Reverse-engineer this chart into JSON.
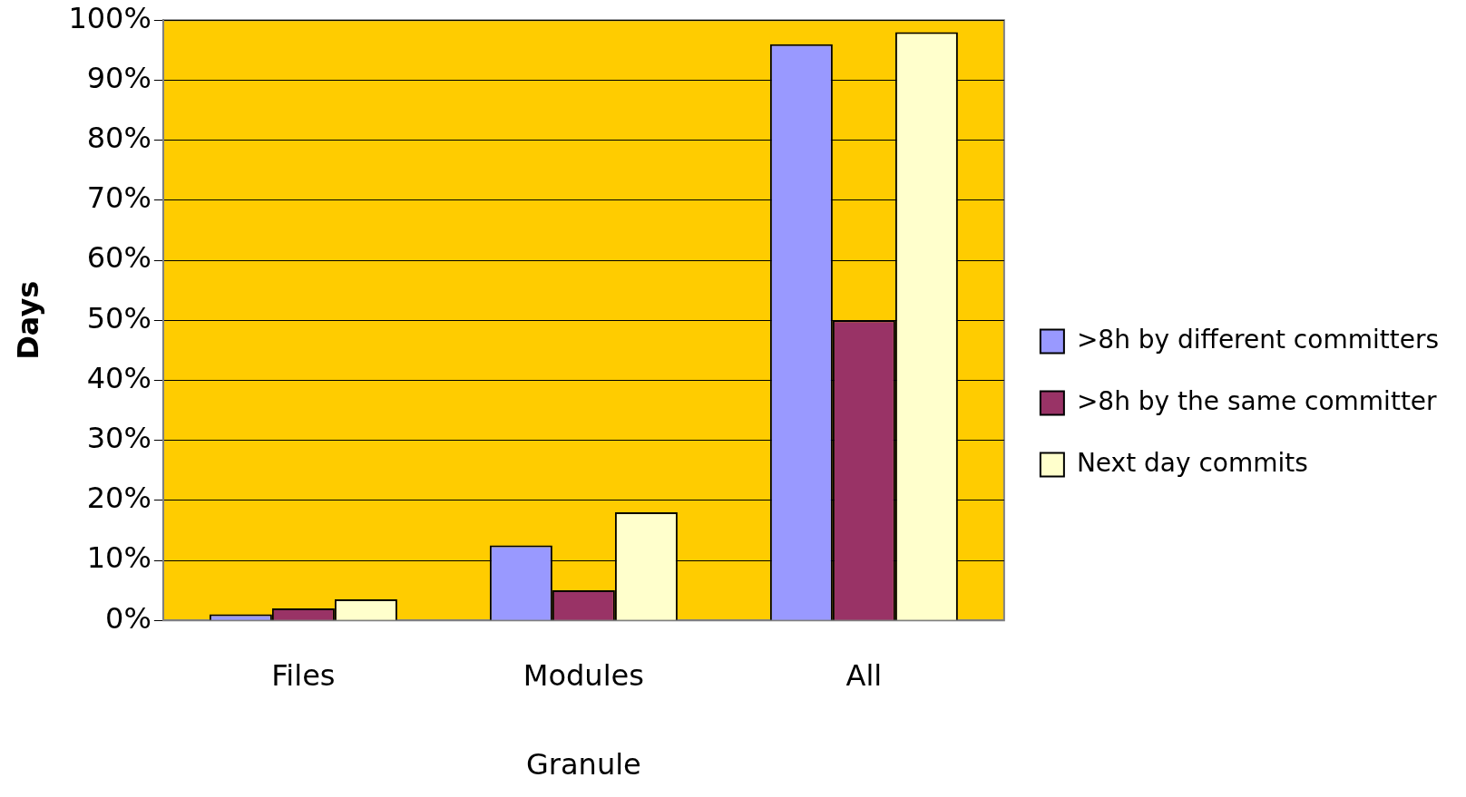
{
  "chart_data": {
    "type": "bar",
    "xlabel": "Granule",
    "ylabel": "Days",
    "categories": [
      "Files",
      "Modules",
      "All"
    ],
    "series": [
      {
        "name": ">8h by different committers",
        "color": "#9999ff",
        "values": [
          1,
          12.5,
          96
        ]
      },
      {
        "name": ">8h by the same committer",
        "color": "#993366",
        "values": [
          2,
          5,
          50
        ]
      },
      {
        "name": "Next day commits",
        "color": "#ffffcc",
        "values": [
          3.5,
          18,
          98
        ]
      }
    ],
    "ylim": [
      0,
      100
    ],
    "yticks": [
      {
        "value": 0,
        "label": "0%"
      },
      {
        "value": 10,
        "label": "10%"
      },
      {
        "value": 20,
        "label": "20%"
      },
      {
        "value": 30,
        "label": "30%"
      },
      {
        "value": 40,
        "label": "40%"
      },
      {
        "value": 50,
        "label": "50%"
      },
      {
        "value": 60,
        "label": "60%"
      },
      {
        "value": 70,
        "label": "70%"
      },
      {
        "value": 80,
        "label": "80%"
      },
      {
        "value": 90,
        "label": "90%"
      },
      {
        "value": 100,
        "label": "100%"
      }
    ],
    "grid": "y",
    "legend": "right"
  }
}
